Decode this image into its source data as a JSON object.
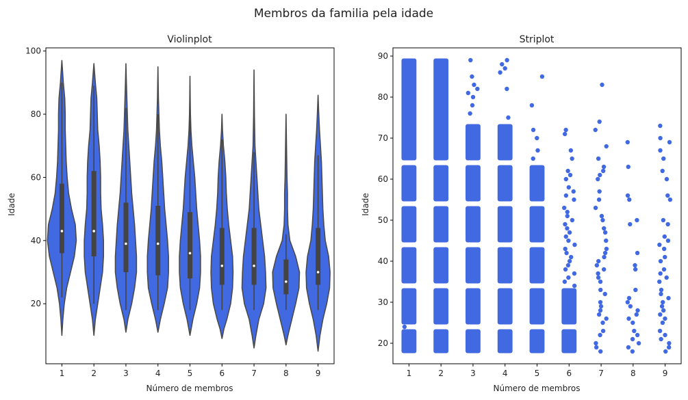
{
  "figure_title": "Membros da familia pela idade",
  "colors": {
    "fill": "#4169E1",
    "outline": "#4a4a4a",
    "box": "#444444",
    "median": "#ffffff",
    "text": "#222222"
  },
  "chart_data": [
    {
      "type": "violin",
      "title": "Violinplot",
      "xlabel": "Número de membros",
      "ylabel": "Idade",
      "categories": [
        "1",
        "2",
        "3",
        "4",
        "5",
        "6",
        "7",
        "8",
        "9"
      ],
      "ylim": [
        1,
        101
      ],
      "yticks": [
        20,
        40,
        60,
        80,
        100
      ],
      "grid": false,
      "violins": [
        {
          "category": "1",
          "min": 10,
          "max": 97,
          "q1": 36,
          "median": 43,
          "q3": 58,
          "whisker_low": 22,
          "whisker_high": 90,
          "density": [
            [
              10,
              0
            ],
            [
              15,
              0.02
            ],
            [
              20,
              0.05
            ],
            [
              25,
              0.1
            ],
            [
              30,
              0.18
            ],
            [
              35,
              0.26
            ],
            [
              40,
              0.3
            ],
            [
              45,
              0.28
            ],
            [
              50,
              0.2
            ],
            [
              55,
              0.14
            ],
            [
              60,
              0.11
            ],
            [
              65,
              0.09
            ],
            [
              70,
              0.08
            ],
            [
              75,
              0.07
            ],
            [
              80,
              0.07
            ],
            [
              85,
              0.06
            ],
            [
              90,
              0.03
            ],
            [
              97,
              0
            ]
          ]
        },
        {
          "category": "2",
          "min": 10,
          "max": 96,
          "q1": 35,
          "median": 43,
          "q3": 62,
          "whisker_low": 20,
          "whisker_high": 89,
          "density": [
            [
              10,
              0
            ],
            [
              15,
              0.03
            ],
            [
              20,
              0.08
            ],
            [
              25,
              0.13
            ],
            [
              30,
              0.18
            ],
            [
              35,
              0.2
            ],
            [
              40,
              0.2
            ],
            [
              45,
              0.18
            ],
            [
              50,
              0.15
            ],
            [
              55,
              0.14
            ],
            [
              60,
              0.14
            ],
            [
              65,
              0.13
            ],
            [
              70,
              0.11
            ],
            [
              75,
              0.08
            ],
            [
              80,
              0.07
            ],
            [
              85,
              0.06
            ],
            [
              90,
              0.03
            ],
            [
              96,
              0
            ]
          ]
        },
        {
          "category": "3",
          "min": 11,
          "max": 96,
          "q1": 30,
          "median": 39,
          "q3": 52,
          "whisker_low": 18,
          "whisker_high": 82,
          "density": [
            [
              11,
              0
            ],
            [
              15,
              0.04
            ],
            [
              20,
              0.12
            ],
            [
              25,
              0.18
            ],
            [
              30,
              0.22
            ],
            [
              35,
              0.22
            ],
            [
              40,
              0.2
            ],
            [
              45,
              0.18
            ],
            [
              50,
              0.15
            ],
            [
              55,
              0.12
            ],
            [
              60,
              0.1
            ],
            [
              65,
              0.08
            ],
            [
              70,
              0.06
            ],
            [
              75,
              0.04
            ],
            [
              80,
              0.03
            ],
            [
              85,
              0.02
            ],
            [
              90,
              0.01
            ],
            [
              96,
              0
            ]
          ]
        },
        {
          "category": "4",
          "min": 11,
          "max": 95,
          "q1": 29,
          "median": 39,
          "q3": 51,
          "whisker_low": 18,
          "whisker_high": 80,
          "density": [
            [
              11,
              0
            ],
            [
              15,
              0.05
            ],
            [
              20,
              0.13
            ],
            [
              25,
              0.2
            ],
            [
              30,
              0.22
            ],
            [
              35,
              0.22
            ],
            [
              40,
              0.2
            ],
            [
              45,
              0.17
            ],
            [
              50,
              0.14
            ],
            [
              55,
              0.12
            ],
            [
              60,
              0.1
            ],
            [
              65,
              0.08
            ],
            [
              70,
              0.05
            ],
            [
              75,
              0.03
            ],
            [
              80,
              0.02
            ],
            [
              85,
              0.01
            ],
            [
              90,
              0.005
            ],
            [
              95,
              0
            ]
          ]
        },
        {
          "category": "5",
          "min": 10,
          "max": 92,
          "q1": 28,
          "median": 36,
          "q3": 49,
          "whisker_low": 18,
          "whisker_high": 78,
          "density": [
            [
              10,
              0
            ],
            [
              15,
              0.06
            ],
            [
              20,
              0.14
            ],
            [
              25,
              0.2
            ],
            [
              30,
              0.22
            ],
            [
              35,
              0.22
            ],
            [
              40,
              0.2
            ],
            [
              45,
              0.17
            ],
            [
              50,
              0.14
            ],
            [
              55,
              0.12
            ],
            [
              60,
              0.1
            ],
            [
              65,
              0.07
            ],
            [
              70,
              0.04
            ],
            [
              75,
              0.02
            ],
            [
              80,
              0.01
            ],
            [
              85,
              0.005
            ],
            [
              92,
              0
            ]
          ]
        },
        {
          "category": "6",
          "min": 9,
          "max": 80,
          "q1": 26,
          "median": 32,
          "q3": 44,
          "whisker_low": 18,
          "whisker_high": 72,
          "density": [
            [
              9,
              0
            ],
            [
              12,
              0.04
            ],
            [
              15,
              0.1
            ],
            [
              20,
              0.18
            ],
            [
              25,
              0.22
            ],
            [
              30,
              0.23
            ],
            [
              35,
              0.22
            ],
            [
              40,
              0.18
            ],
            [
              45,
              0.14
            ],
            [
              50,
              0.11
            ],
            [
              55,
              0.09
            ],
            [
              60,
              0.08
            ],
            [
              65,
              0.06
            ],
            [
              70,
              0.03
            ],
            [
              75,
              0.01
            ],
            [
              80,
              0
            ]
          ]
        },
        {
          "category": "7",
          "min": 6,
          "max": 94,
          "q1": 26,
          "median": 32,
          "q3": 44,
          "whisker_low": 18,
          "whisker_high": 68,
          "density": [
            [
              6,
              0
            ],
            [
              10,
              0.04
            ],
            [
              15,
              0.1
            ],
            [
              20,
              0.2
            ],
            [
              25,
              0.25
            ],
            [
              30,
              0.24
            ],
            [
              35,
              0.22
            ],
            [
              40,
              0.18
            ],
            [
              45,
              0.14
            ],
            [
              50,
              0.1
            ],
            [
              55,
              0.08
            ],
            [
              60,
              0.06
            ],
            [
              65,
              0.04
            ],
            [
              70,
              0.02
            ],
            [
              80,
              0.008
            ],
            [
              94,
              0
            ]
          ]
        },
        {
          "category": "8",
          "min": 7,
          "max": 80,
          "q1": 23,
          "median": 27,
          "q3": 34,
          "whisker_low": 18,
          "whisker_high": 42,
          "density": [
            [
              7,
              0
            ],
            [
              10,
              0.04
            ],
            [
              15,
              0.12
            ],
            [
              20,
              0.2
            ],
            [
              25,
              0.27
            ],
            [
              30,
              0.28
            ],
            [
              35,
              0.2
            ],
            [
              40,
              0.08
            ],
            [
              45,
              0.04
            ],
            [
              50,
              0.03
            ],
            [
              55,
              0.03
            ],
            [
              60,
              0.02
            ],
            [
              65,
              0.015
            ],
            [
              70,
              0.01
            ],
            [
              75,
              0.005
            ],
            [
              80,
              0
            ]
          ]
        },
        {
          "category": "9",
          "min": 5,
          "max": 86,
          "q1": 26,
          "median": 30,
          "q3": 44,
          "whisker_low": 18,
          "whisker_high": 67,
          "density": [
            [
              5,
              0
            ],
            [
              10,
              0.04
            ],
            [
              15,
              0.1
            ],
            [
              20,
              0.18
            ],
            [
              25,
              0.24
            ],
            [
              30,
              0.25
            ],
            [
              35,
              0.22
            ],
            [
              40,
              0.15
            ],
            [
              45,
              0.12
            ],
            [
              50,
              0.1
            ],
            [
              55,
              0.09
            ],
            [
              60,
              0.08
            ],
            [
              65,
              0.07
            ],
            [
              70,
              0.05
            ],
            [
              75,
              0.03
            ],
            [
              80,
              0.015
            ],
            [
              86,
              0
            ]
          ]
        }
      ]
    },
    {
      "type": "strip",
      "title": "Striplot",
      "xlabel": "Número de membros",
      "ylabel": "Idade",
      "categories": [
        "1",
        "2",
        "3",
        "4",
        "5",
        "6",
        "7",
        "8",
        "9"
      ],
      "ylim": [
        15,
        92
      ],
      "yticks": [
        20,
        30,
        40,
        50,
        60,
        70,
        80,
        90
      ],
      "grid": false,
      "bands": [
        {
          "category": "1",
          "ranges": [
            [
              18,
              23
            ],
            [
              25,
              33
            ],
            [
              35,
              43
            ],
            [
              45,
              53
            ],
            [
              55,
              63
            ],
            [
              65,
              89
            ]
          ]
        },
        {
          "category": "2",
          "ranges": [
            [
              18,
              23
            ],
            [
              25,
              33
            ],
            [
              35,
              43
            ],
            [
              45,
              53
            ],
            [
              55,
              63
            ],
            [
              65,
              89
            ]
          ]
        },
        {
          "category": "3",
          "ranges": [
            [
              18,
              23
            ],
            [
              25,
              33
            ],
            [
              35,
              43
            ],
            [
              45,
              53
            ],
            [
              55,
              63
            ],
            [
              65,
              73
            ]
          ]
        },
        {
          "category": "4",
          "ranges": [
            [
              18,
              23
            ],
            [
              25,
              33
            ],
            [
              35,
              43
            ],
            [
              45,
              53
            ],
            [
              55,
              63
            ],
            [
              65,
              73
            ]
          ]
        },
        {
          "category": "5",
          "ranges": [
            [
              18,
              23
            ],
            [
              25,
              33
            ],
            [
              35,
              43
            ],
            [
              45,
              53
            ],
            [
              55,
              63
            ]
          ]
        },
        {
          "category": "6",
          "ranges": [
            [
              18,
              23
            ],
            [
              25,
              33
            ]
          ]
        },
        {
          "category": "7",
          "ranges": []
        },
        {
          "category": "8",
          "ranges": []
        },
        {
          "category": "9",
          "ranges": []
        }
      ],
      "scatter": [
        {
          "category": "1",
          "ages": [
            19,
            21,
            24
          ]
        },
        {
          "category": "2",
          "ages": []
        },
        {
          "category": "3",
          "ages": [
            76,
            78,
            80,
            81,
            82,
            83,
            85,
            89
          ]
        },
        {
          "category": "4",
          "ages": [
            75,
            82,
            86,
            87,
            88,
            89
          ]
        },
        {
          "category": "5",
          "ages": [
            65,
            67,
            70,
            72,
            78,
            85
          ]
        },
        {
          "category": "6",
          "ages": [
            34,
            35,
            36,
            37,
            38,
            39,
            40,
            41,
            42,
            43,
            44,
            45,
            46,
            47,
            48,
            49,
            50,
            51,
            52,
            53,
            55,
            56,
            57,
            58,
            60,
            61,
            62,
            65,
            67,
            71,
            72
          ]
        },
        {
          "category": "7",
          "ages": [
            18,
            19,
            20,
            22,
            23,
            25,
            26,
            27,
            28,
            29,
            30,
            32,
            33,
            35,
            36,
            37,
            38,
            39,
            40,
            41,
            42,
            43,
            45,
            47,
            48,
            50,
            51,
            53,
            55,
            57,
            60,
            61,
            62,
            63,
            65,
            68,
            72,
            74,
            83
          ]
        },
        {
          "category": "8",
          "ages": [
            18,
            19,
            20,
            21,
            22,
            23,
            25,
            26,
            27,
            28,
            29,
            30,
            31,
            33,
            38,
            39,
            42,
            49,
            50,
            55,
            56,
            63,
            69
          ]
        },
        {
          "category": "9",
          "ages": [
            18,
            19,
            20,
            21,
            22,
            23,
            25,
            26,
            27,
            28,
            29,
            30,
            31,
            32,
            33,
            35,
            36,
            37,
            38,
            40,
            41,
            43,
            44,
            45,
            46,
            49,
            50,
            55,
            56,
            60,
            62,
            65,
            67,
            69,
            70,
            73
          ]
        }
      ]
    }
  ]
}
